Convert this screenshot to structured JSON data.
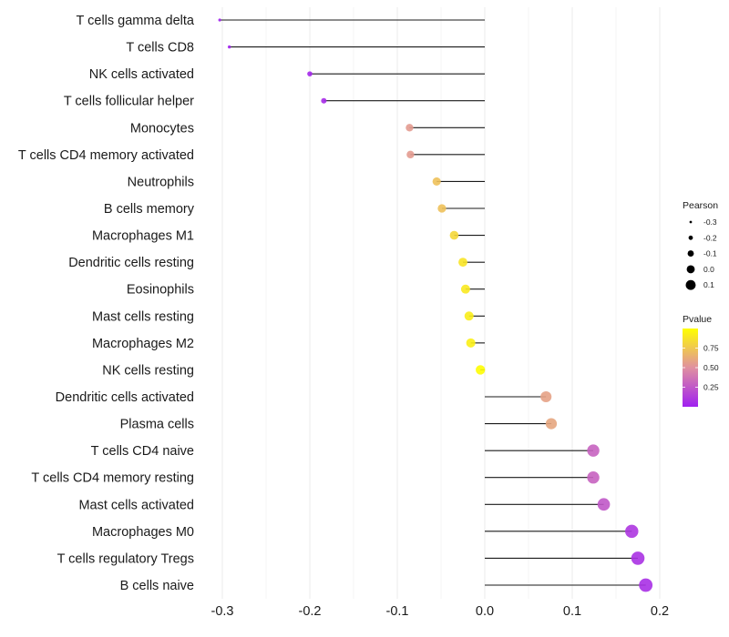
{
  "chart_data": {
    "type": "lollipop",
    "title": "",
    "xlabel": "",
    "ylabel": "",
    "xlim": [
      -0.31,
      0.205
    ],
    "xticks": [
      -0.3,
      -0.2,
      -0.1,
      0.0,
      0.1,
      0.2
    ],
    "xtick_labels": [
      "-0.3",
      "-0.2",
      "-0.1",
      "0.0",
      "0.1",
      "0.2"
    ],
    "grid": true,
    "categories": [
      "T cells gamma delta",
      "T cells CD8",
      "NK cells activated",
      "T cells follicular helper",
      "Monocytes",
      "T cells CD4 memory activated",
      "Neutrophils",
      "B cells memory",
      "Macrophages M1",
      "Dendritic cells resting",
      "Eosinophils",
      "Mast cells resting",
      "Macrophages M2",
      "NK cells resting",
      "Dendritic cells activated",
      "Plasma cells",
      "T cells CD4 naive",
      "T cells CD4 memory resting",
      "Mast cells activated",
      "Macrophages M0",
      "T cells regulatory  Tregs",
      "B cells naive"
    ],
    "pearson": [
      -0.303,
      -0.292,
      -0.2,
      -0.184,
      -0.086,
      -0.085,
      -0.055,
      -0.049,
      -0.035,
      -0.025,
      -0.022,
      -0.018,
      -0.016,
      -0.005,
      0.07,
      0.076,
      0.124,
      0.124,
      0.136,
      0.168,
      0.175,
      0.184
    ],
    "pvalue": [
      0.01,
      0.01,
      0.03,
      0.05,
      0.55,
      0.55,
      0.72,
      0.72,
      0.82,
      0.88,
      0.9,
      0.92,
      0.93,
      0.99,
      0.58,
      0.6,
      0.3,
      0.3,
      0.25,
      0.1,
      0.08,
      0.07
    ],
    "legend": {
      "position": "right",
      "size": {
        "title": "Pearson",
        "breaks": [
          -0.3,
          -0.2,
          -0.1,
          0.0,
          0.1
        ],
        "labels": [
          "-0.3",
          "-0.2",
          "-0.1",
          "0.0",
          "0.1"
        ]
      },
      "color": {
        "title": "Pvalue",
        "breaks": [
          0.25,
          0.5,
          0.75
        ],
        "labels": [
          "0.25",
          "0.50",
          "0.75"
        ],
        "range": [
          0.0,
          1.0
        ],
        "low_color": "#a020f0",
        "mid_color": "#e090a0",
        "high_color": "#ffff00"
      }
    }
  }
}
